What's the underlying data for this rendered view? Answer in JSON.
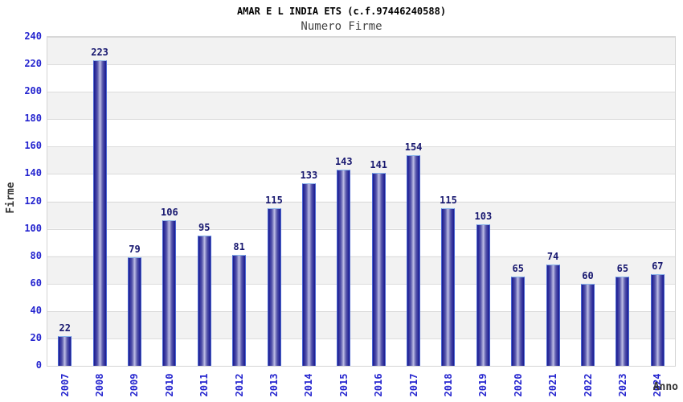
{
  "title": "AMAR E L INDIA ETS (c.f.97446240588)",
  "subtitle": "Numero Firme",
  "chart_data": {
    "type": "bar",
    "title": "AMAR E L INDIA ETS (c.f.97446240588)",
    "subtitle": "Numero Firme",
    "xlabel": "Anno",
    "ylabel": "Firme",
    "categories": [
      "2007",
      "2008",
      "2009",
      "2010",
      "2011",
      "2012",
      "2013",
      "2014",
      "2015",
      "2016",
      "2017",
      "2018",
      "2019",
      "2020",
      "2021",
      "2022",
      "2023",
      "2024"
    ],
    "values": [
      22,
      223,
      79,
      106,
      95,
      81,
      115,
      133,
      143,
      141,
      154,
      115,
      103,
      65,
      74,
      60,
      65,
      67
    ],
    "ylim": [
      0,
      240
    ],
    "yticks": [
      0,
      20,
      40,
      60,
      80,
      100,
      120,
      140,
      160,
      180,
      200,
      220,
      240
    ],
    "grid": true,
    "legend": false,
    "band_fill": "alternating horizontal stripes every 20 units",
    "value_labels": "above each bar"
  },
  "colors": {
    "tick_label": "#2424cf",
    "value_label": "#17176f",
    "axis_title": "#333333",
    "title": "#000000",
    "subtitle": "#444444",
    "bar_dark": "#1e1e88",
    "bar_highlight": "#c0c0e8",
    "bar_border": "#4a66d2",
    "bar_border_top": "#8ab4ea",
    "band_gray": "#f2f2f2",
    "gridline": "#dcdcdc"
  }
}
